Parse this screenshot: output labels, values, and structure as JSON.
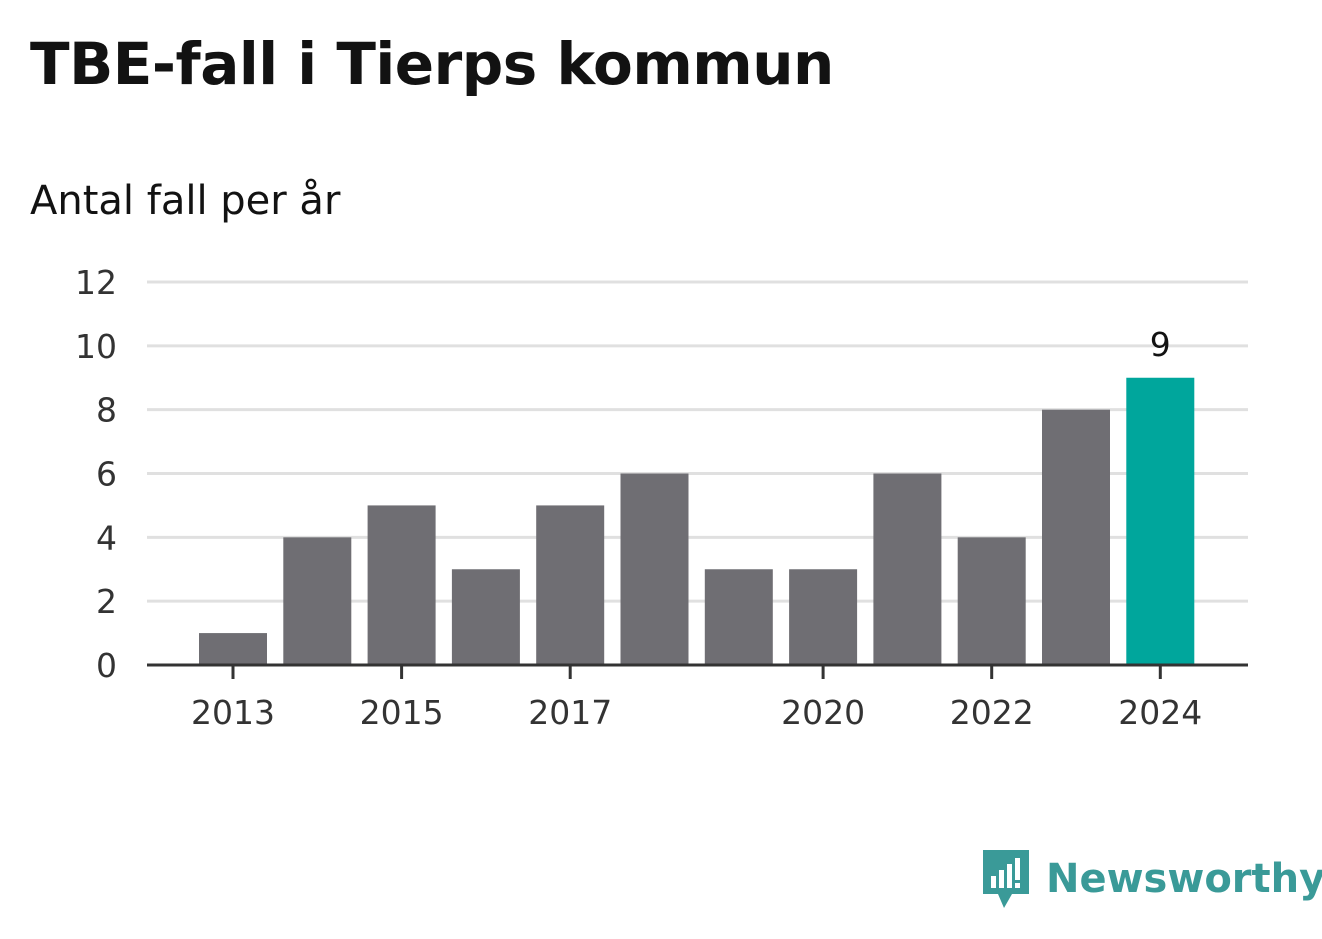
{
  "title": "TBE-fall i Tierps kommun",
  "subtitle": "Antal fall per år",
  "brand": "Newsworthy",
  "colors": {
    "bar": "#6f6e73",
    "highlight": "#00a69c",
    "grid": "#e0e0e0",
    "axis": "#333333",
    "brand": "#3a9a98"
  },
  "chart_data": {
    "type": "bar",
    "categories": [
      "2013",
      "2014",
      "2015",
      "2016",
      "2017",
      "2018",
      "2019",
      "2020",
      "2021",
      "2022",
      "2023",
      "2024"
    ],
    "values": [
      1,
      4,
      5,
      3,
      5,
      6,
      3,
      3,
      6,
      4,
      8,
      9
    ],
    "x_tick_labels": [
      "2013",
      "2015",
      "2017",
      "2020",
      "2022",
      "2024"
    ],
    "y_ticks": [
      0,
      2,
      4,
      6,
      8,
      10,
      12
    ],
    "ylim": [
      0,
      12
    ],
    "highlight_category": "2024",
    "data_labels": [
      {
        "category": "2024",
        "text": "9"
      }
    ],
    "grid": true,
    "legend": "none",
    "xlabel": "",
    "ylabel": ""
  }
}
